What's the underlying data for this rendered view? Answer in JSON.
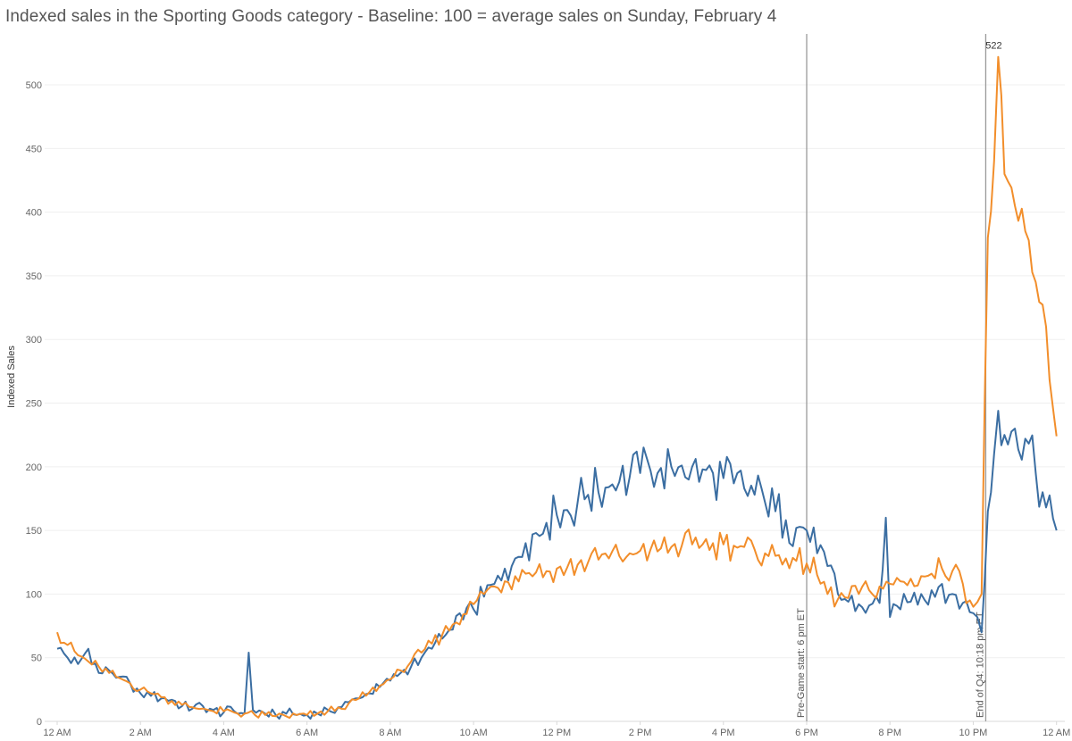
{
  "title": "Indexed sales in the Sporting Goods category - Baseline: 100 = average sales on Sunday, February 4",
  "chart_data": {
    "type": "line",
    "title": "Indexed sales in the Sporting Goods category - Baseline: 100 = average sales on Sunday, February 4",
    "xlabel": "",
    "ylabel": "Indexed Sales",
    "x_unit": "hours since midnight",
    "xlim": [
      -0.3,
      24.2
    ],
    "ylim": [
      0,
      540
    ],
    "x_ticks": [
      {
        "x": 0,
        "label": "12 AM"
      },
      {
        "x": 2,
        "label": "2 AM"
      },
      {
        "x": 4,
        "label": "4 AM"
      },
      {
        "x": 6,
        "label": "6 AM"
      },
      {
        "x": 8,
        "label": "8 AM"
      },
      {
        "x": 10,
        "label": "10 AM"
      },
      {
        "x": 12,
        "label": "12 PM"
      },
      {
        "x": 14,
        "label": "2 PM"
      },
      {
        "x": 16,
        "label": "4 PM"
      },
      {
        "x": 18,
        "label": "6 PM"
      },
      {
        "x": 20,
        "label": "8 PM"
      },
      {
        "x": 22,
        "label": "10 PM"
      },
      {
        "x": 24,
        "label": "12 AM"
      }
    ],
    "y_ticks": [
      0,
      50,
      100,
      150,
      200,
      250,
      300,
      350,
      400,
      450,
      500
    ],
    "grid": true,
    "legend": "none",
    "reference_lines": [
      {
        "x": 18.0,
        "label": "Pre-Game start: 6 pm ET"
      },
      {
        "x": 22.3,
        "label": "End of Q4: 10:18 pm ET"
      }
    ],
    "annotations": [
      {
        "x": 22.6,
        "y": 522,
        "label": "522"
      }
    ],
    "series": [
      {
        "color": "#3b6ea2",
        "points": [
          [
            0,
            57
          ],
          [
            0.25,
            50
          ],
          [
            0.5,
            45
          ],
          [
            0.75,
            57
          ],
          [
            1,
            38
          ],
          [
            1.25,
            40
          ],
          [
            1.5,
            35
          ],
          [
            1.75,
            30
          ],
          [
            2,
            22
          ],
          [
            2.25,
            20
          ],
          [
            2.5,
            18
          ],
          [
            2.75,
            17
          ],
          [
            3,
            12
          ],
          [
            3.25,
            10
          ],
          [
            3.5,
            12
          ],
          [
            3.75,
            9
          ],
          [
            4,
            7
          ],
          [
            4.25,
            8
          ],
          [
            4.5,
            6
          ],
          [
            4.6,
            54
          ],
          [
            4.7,
            9
          ],
          [
            5,
            6
          ],
          [
            5.25,
            5
          ],
          [
            5.5,
            6
          ],
          [
            5.75,
            5
          ],
          [
            6,
            5
          ],
          [
            6.25,
            6
          ],
          [
            6.5,
            9
          ],
          [
            6.75,
            11
          ],
          [
            7,
            15
          ],
          [
            7.25,
            18
          ],
          [
            7.5,
            22
          ],
          [
            7.75,
            27
          ],
          [
            8,
            32
          ],
          [
            8.25,
            38
          ],
          [
            8.5,
            43
          ],
          [
            8.75,
            50
          ],
          [
            9,
            57
          ],
          [
            9.25,
            65
          ],
          [
            9.5,
            72
          ],
          [
            9.75,
            80
          ],
          [
            10,
            88
          ],
          [
            10.25,
            98
          ],
          [
            10.5,
            108
          ],
          [
            10.75,
            120
          ],
          [
            11,
            128
          ],
          [
            11.25,
            140
          ],
          [
            11.5,
            148
          ],
          [
            11.75,
            156
          ],
          [
            12,
            162
          ],
          [
            12.25,
            166
          ],
          [
            12.5,
            172
          ],
          [
            12.75,
            178
          ],
          [
            13,
            180
          ],
          [
            13.25,
            184
          ],
          [
            13.5,
            188
          ],
          [
            13.75,
            192
          ],
          [
            14,
            195
          ],
          [
            14.25,
            197
          ],
          [
            14.5,
            199
          ],
          [
            14.75,
            200
          ],
          [
            15,
            201
          ],
          [
            15.25,
            200
          ],
          [
            15.5,
            198
          ],
          [
            15.75,
            195
          ],
          [
            16,
            191
          ],
          [
            16.25,
            187
          ],
          [
            16.5,
            183
          ],
          [
            16.75,
            178
          ],
          [
            17,
            172
          ],
          [
            17.25,
            165
          ],
          [
            17.5,
            158
          ],
          [
            17.75,
            152
          ],
          [
            18,
            150
          ],
          [
            18.25,
            132
          ],
          [
            18.5,
            122
          ],
          [
            18.75,
            100
          ],
          [
            19,
            94
          ],
          [
            19.25,
            92
          ],
          [
            19.5,
            91
          ],
          [
            19.75,
            93
          ],
          [
            19.9,
            160
          ],
          [
            20,
            82
          ],
          [
            20.25,
            88
          ],
          [
            20.5,
            94
          ],
          [
            20.75,
            100
          ],
          [
            21,
            103
          ],
          [
            21.25,
            108
          ],
          [
            21.5,
            100
          ],
          [
            21.75,
            93
          ],
          [
            22,
            85
          ],
          [
            22.2,
            70
          ],
          [
            22.35,
            165
          ],
          [
            22.5,
            210
          ],
          [
            22.6,
            244
          ],
          [
            22.75,
            225
          ],
          [
            23,
            230
          ],
          [
            23.25,
            222
          ],
          [
            23.5,
            195
          ],
          [
            23.75,
            168
          ],
          [
            24,
            150
          ]
        ],
        "wiggle": 13
      },
      {
        "color": "#f28e2b",
        "points": [
          [
            0,
            70
          ],
          [
            0.25,
            60
          ],
          [
            0.5,
            52
          ],
          [
            0.75,
            47
          ],
          [
            1,
            43
          ],
          [
            1.25,
            38
          ],
          [
            1.5,
            34
          ],
          [
            1.75,
            30
          ],
          [
            2,
            25
          ],
          [
            2.25,
            22
          ],
          [
            2.5,
            19
          ],
          [
            2.75,
            16
          ],
          [
            3,
            13
          ],
          [
            3.25,
            11
          ],
          [
            3.5,
            10
          ],
          [
            3.75,
            8
          ],
          [
            4,
            8
          ],
          [
            4.25,
            7
          ],
          [
            4.5,
            6
          ],
          [
            4.75,
            5
          ],
          [
            5,
            5
          ],
          [
            5.25,
            4
          ],
          [
            5.5,
            4
          ],
          [
            5.75,
            5
          ],
          [
            6,
            5
          ],
          [
            6.25,
            6
          ],
          [
            6.5,
            8
          ],
          [
            6.75,
            11
          ],
          [
            7,
            14
          ],
          [
            7.25,
            18
          ],
          [
            7.5,
            23
          ],
          [
            7.75,
            28
          ],
          [
            8,
            33
          ],
          [
            8.25,
            40
          ],
          [
            8.5,
            47
          ],
          [
            8.75,
            54
          ],
          [
            9,
            61
          ],
          [
            9.25,
            68
          ],
          [
            9.5,
            76
          ],
          [
            9.75,
            84
          ],
          [
            10,
            92
          ],
          [
            10.25,
            100
          ],
          [
            10.5,
            106
          ],
          [
            10.75,
            110
          ],
          [
            11,
            114
          ],
          [
            11.25,
            116
          ],
          [
            11.5,
            117
          ],
          [
            11.75,
            118
          ],
          [
            12,
            120
          ],
          [
            12.25,
            121
          ],
          [
            12.5,
            123
          ],
          [
            12.75,
            125
          ],
          [
            13,
            127
          ],
          [
            13.25,
            128
          ],
          [
            13.5,
            130
          ],
          [
            13.75,
            132
          ],
          [
            14,
            134
          ],
          [
            14.25,
            135
          ],
          [
            14.5,
            136
          ],
          [
            14.75,
            137
          ],
          [
            15,
            138
          ],
          [
            15.25,
            139
          ],
          [
            15.5,
            139
          ],
          [
            15.75,
            140
          ],
          [
            16,
            139
          ],
          [
            16.25,
            138
          ],
          [
            16.5,
            137
          ],
          [
            16.75,
            135
          ],
          [
            17,
            132
          ],
          [
            17.25,
            130
          ],
          [
            17.5,
            128
          ],
          [
            17.75,
            126
          ],
          [
            18,
            124
          ],
          [
            18.25,
            115
          ],
          [
            18.5,
            100
          ],
          [
            18.75,
            96
          ],
          [
            19,
            97
          ],
          [
            19.25,
            100
          ],
          [
            19.5,
            103
          ],
          [
            19.75,
            106
          ],
          [
            20,
            108
          ],
          [
            20.25,
            110
          ],
          [
            20.5,
            112
          ],
          [
            20.75,
            114
          ],
          [
            21,
            116
          ],
          [
            21.25,
            120
          ],
          [
            21.5,
            118
          ],
          [
            21.75,
            108
          ],
          [
            22,
            90
          ],
          [
            22.2,
            100
          ],
          [
            22.35,
            380
          ],
          [
            22.5,
            440
          ],
          [
            22.6,
            522
          ],
          [
            22.75,
            430
          ],
          [
            23,
            405
          ],
          [
            23.25,
            385
          ],
          [
            23.5,
            345
          ],
          [
            23.75,
            310
          ],
          [
            24,
            224
          ]
        ],
        "wiggle": 10
      }
    ]
  }
}
